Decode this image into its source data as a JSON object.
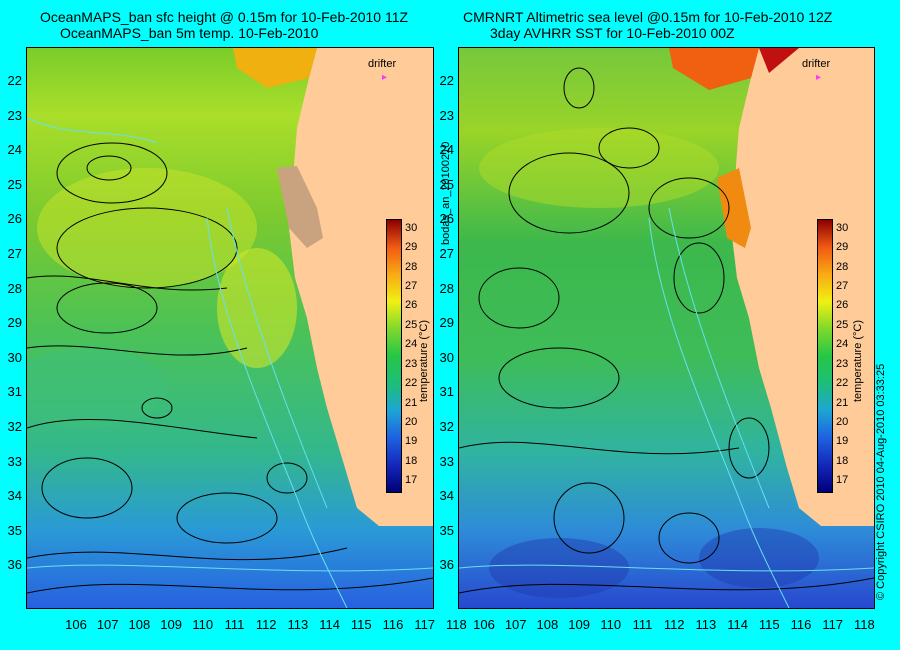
{
  "left_panel": {
    "title_line1": "OceanMAPS_ban sfc height @ 0.15m for 10-Feb-2010 11Z",
    "title_line2": "OceanMAPS_ban 5m temp. 10-Feb-2010",
    "drifter_label": "drifter",
    "colorbar_label": "temperature (°C)"
  },
  "right_panel": {
    "title_line1": "CMRNRT Altimetric sea level  @0.15m  for 10-Feb-2010 12Z",
    "title_line2": "3day AVHRR SST for 10-Feb-2010 00Z",
    "drifter_label": "drifter",
    "colorbar_label": "temperature (°C)"
  },
  "run_id": "bodas_an_20100210",
  "copyright": "© Copyright CSIRO 2010    04-Aug-2010 03:33:25",
  "axes": {
    "latitudes": [
      "22",
      "23",
      "24",
      "25",
      "26",
      "27",
      "28",
      "29",
      "30",
      "31",
      "32",
      "33",
      "34",
      "35",
      "36"
    ],
    "longitudes": [
      "106",
      "107",
      "108",
      "109",
      "110",
      "111",
      "112",
      "113",
      "114",
      "115",
      "116",
      "117",
      "118"
    ]
  },
  "colorbar": {
    "ticks": [
      "30",
      "29",
      "28",
      "27",
      "26",
      "25",
      "24",
      "23",
      "22",
      "21",
      "20",
      "19",
      "18",
      "17"
    ],
    "range": [
      16.5,
      30.5
    ]
  },
  "colors": {
    "background": "#00ffff",
    "land": "#ffcc99"
  }
}
